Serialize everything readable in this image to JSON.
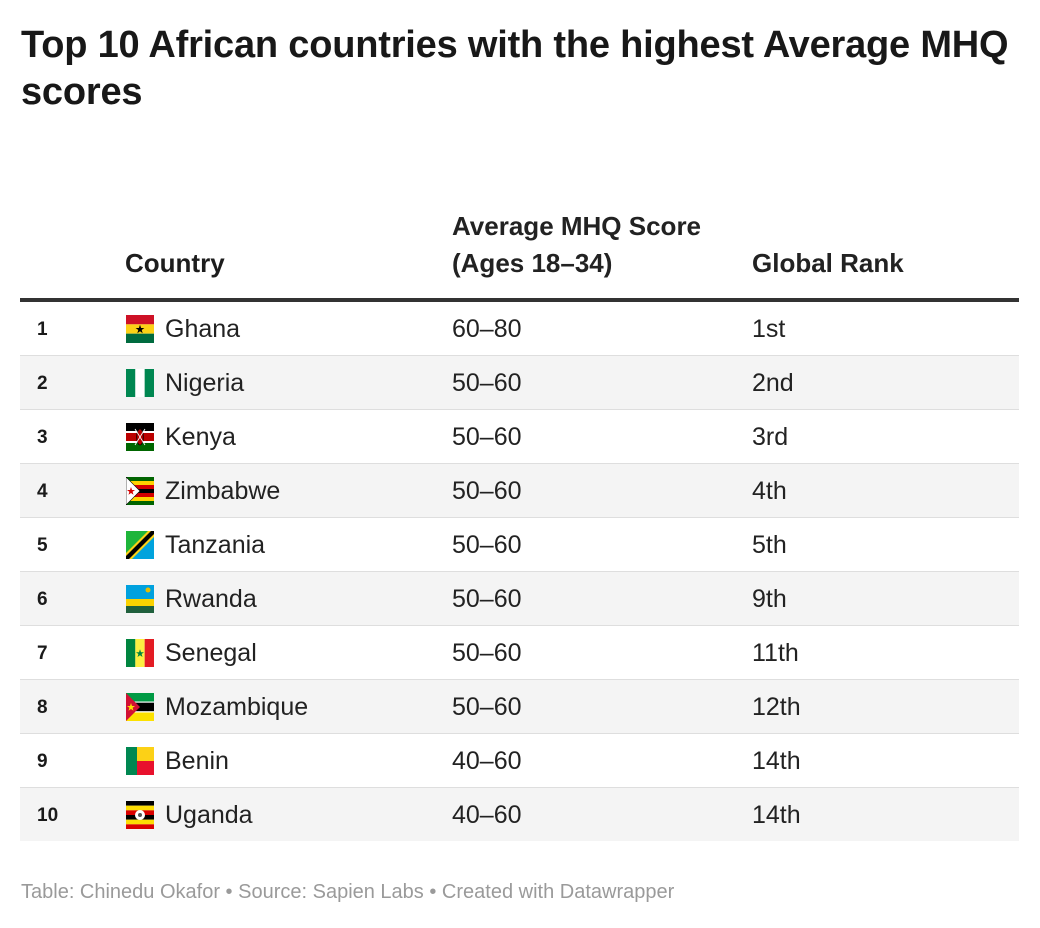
{
  "chart_data": {
    "type": "table",
    "title": "Top 10 African countries with the highest Average MHQ scores",
    "columns": [
      "",
      "Country",
      "Average MHQ Score (Ages 18–34)",
      "Global Rank"
    ],
    "rows": [
      {
        "n": "1",
        "country": "Ghana",
        "score": "60–80",
        "rank": "1st",
        "flag": "ghana-flag-icon"
      },
      {
        "n": "2",
        "country": "Nigeria",
        "score": "50–60",
        "rank": "2nd",
        "flag": "nigeria-flag-icon"
      },
      {
        "n": "3",
        "country": "Kenya",
        "score": "50–60",
        "rank": "3rd",
        "flag": "kenya-flag-icon"
      },
      {
        "n": "4",
        "country": "Zimbabwe",
        "score": "50–60",
        "rank": "4th",
        "flag": "zimbabwe-flag-icon"
      },
      {
        "n": "5",
        "country": "Tanzania",
        "score": "50–60",
        "rank": "5th",
        "flag": "tanzania-flag-icon"
      },
      {
        "n": "6",
        "country": "Rwanda",
        "score": "50–60",
        "rank": "9th",
        "flag": "rwanda-flag-icon"
      },
      {
        "n": "7",
        "country": "Senegal",
        "score": "50–60",
        "rank": "11th",
        "flag": "senegal-flag-icon"
      },
      {
        "n": "8",
        "country": "Mozambique",
        "score": "50–60",
        "rank": "12th",
        "flag": "mozambique-flag-icon"
      },
      {
        "n": "9",
        "country": "Benin",
        "score": "40–60",
        "rank": "14th",
        "flag": "benin-flag-icon"
      },
      {
        "n": "10",
        "country": "Uganda",
        "score": "40–60",
        "rank": "14th",
        "flag": "uganda-flag-icon"
      }
    ],
    "footer": "Table: Chinedu Okafor • Source: Sapien Labs • Created with Datawrapper"
  },
  "colors": {
    "header_rule": "#333333",
    "row_alt_background": "#f4f4f4",
    "row_divider": "#dedede",
    "footer_text": "#9a9a9a"
  }
}
